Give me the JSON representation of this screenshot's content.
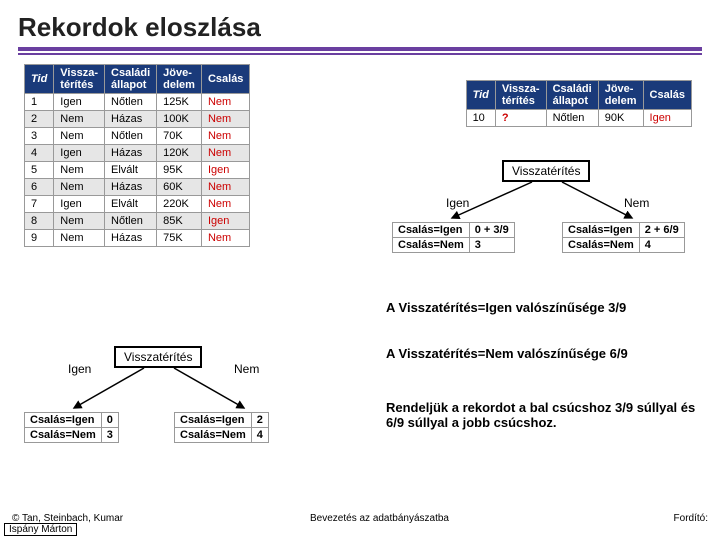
{
  "title": "Rekordok eloszlása",
  "headers": {
    "tid": "Tid",
    "vissza": "Vissza-\ntérítés",
    "csaladi": "Családi\nállapot",
    "jov": "Jöve-\ndelem",
    "csalas": "Csalás"
  },
  "rows": [
    {
      "tid": "1",
      "v": "Igen",
      "c": "Nőtlen",
      "j": "125K",
      "cs": "Nem"
    },
    {
      "tid": "2",
      "v": "Nem",
      "c": "Házas",
      "j": "100K",
      "cs": "Nem"
    },
    {
      "tid": "3",
      "v": "Nem",
      "c": "Nőtlen",
      "j": "70K",
      "cs": "Nem"
    },
    {
      "tid": "4",
      "v": "Igen",
      "c": "Házas",
      "j": "120K",
      "cs": "Nem"
    },
    {
      "tid": "5",
      "v": "Nem",
      "c": "Elvált",
      "j": "95K",
      "cs": "Igen"
    },
    {
      "tid": "6",
      "v": "Nem",
      "c": "Házas",
      "j": "60K",
      "cs": "Nem"
    },
    {
      "tid": "7",
      "v": "Igen",
      "c": "Elvált",
      "j": "220K",
      "cs": "Nem"
    },
    {
      "tid": "8",
      "v": "Nem",
      "c": "Nőtlen",
      "j": "85K",
      "cs": "Igen"
    },
    {
      "tid": "9",
      "v": "Nem",
      "c": "Házas",
      "j": "75K",
      "cs": "Nem"
    }
  ],
  "test": {
    "tid": "10",
    "v": "?",
    "c": "Nőtlen",
    "j": "90K",
    "cs": "Igen"
  },
  "tree": {
    "node": "Visszatérítés",
    "left": "Igen",
    "right": "Nem"
  },
  "leaf_labels": {
    "yes": "Csalás=Igen",
    "no": "Csalás=Nem"
  },
  "t1_left": {
    "yes": "0 + 3/9",
    "no": "3"
  },
  "t1_right": {
    "yes": "2 + 6/9",
    "no": "4"
  },
  "t2_left": {
    "yes": "0",
    "no": "3"
  },
  "t2_right": {
    "yes": "2",
    "no": "4"
  },
  "text1": "A Visszatérítés=Igen valószínűsége 3/9",
  "text2": "A Visszatérítés=Nem valószínűsége 6/9",
  "text3": "Rendeljük a rekordot a bal csúcshoz 3/9 súllyal és 6/9 súllyal a jobb csúcshoz.",
  "credits": {
    "left": "© Tan, Steinbach, Kumar",
    "mid": "Bevezetés az adatbányászatba",
    "right": "Fordító:",
    "bl": "Ispány Márton"
  }
}
